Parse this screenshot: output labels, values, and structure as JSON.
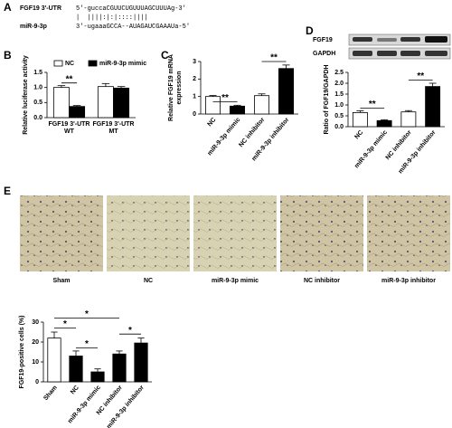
{
  "panel_labels": [
    "A",
    "B",
    "C",
    "D",
    "E"
  ],
  "sequence": {
    "target_name": "FGF19 3'-UTR",
    "target_seq": "5'-guccaCGUUCUGUUUAGCUUUAg-3'",
    "pairing": "|  ||||:|:|::::||||",
    "mirna_name": "miR-9-3p",
    "mirna_seq": "3'-ugaaaGCCA--AUAGAUCGAAAUa-5'"
  },
  "blot": {
    "labels": [
      "FGF19",
      "GAPDH"
    ]
  },
  "images": {
    "labels": [
      "Sham",
      "NC",
      "miR-9-3p mimic",
      "NC inhibitor",
      "miR-9-3p inhibitor"
    ]
  },
  "chart_data": [
    {
      "type": "grouped-bar",
      "ylabel": [
        "Relative luciferase activity"
      ],
      "categories": [
        [
          "FGF19 3'-UTR",
          "WT"
        ],
        [
          "FGF19 3'-UTR",
          "MT"
        ]
      ],
      "series": [
        {
          "name": "NC",
          "color": "#ffffff",
          "values": [
            1.0,
            1.03
          ],
          "errors": [
            0.06,
            0.1
          ]
        },
        {
          "name": "miR-9-3p mimic",
          "color": "#000000",
          "values": [
            0.37,
            0.98
          ],
          "errors": [
            0.03,
            0.05
          ]
        }
      ],
      "ylim": [
        0,
        1.5
      ],
      "yticks": [
        {
          "value": 0,
          "label": "0.0"
        },
        {
          "value": 0.5,
          "label": "0.5"
        },
        {
          "value": 1,
          "label": "1.0"
        },
        {
          "value": 1.5,
          "label": "1.5"
        }
      ],
      "annotations": [
        "**"
      ]
    },
    {
      "type": "bar",
      "ylabel": [
        "Relative FGF19 mRNA",
        "expression"
      ],
      "categories": [
        "NC",
        "miR-9-3p mimic",
        "NC inhibitor",
        "miR-9-3p inhibitor"
      ],
      "values": [
        1.0,
        0.45,
        1.05,
        2.6
      ],
      "errors": [
        0.06,
        0.05,
        0.1,
        0.2
      ],
      "colors": [
        "#ffffff",
        "#000000",
        "#ffffff",
        "#000000"
      ],
      "ylim": [
        0,
        3
      ],
      "yticks": [
        0,
        1,
        2,
        3
      ],
      "annotations": [
        "**",
        "**"
      ]
    },
    {
      "type": "bar",
      "ylabel": [
        "Ratio of FGF19/GAPDH"
      ],
      "categories": [
        "NC",
        "miR-9-3p mimic",
        "NC inhibitor",
        "miR-9-3p inhibitor"
      ],
      "values": [
        0.65,
        0.28,
        0.68,
        1.85
      ],
      "errors": [
        0.08,
        0.04,
        0.06,
        0.15
      ],
      "colors": [
        "#ffffff",
        "#000000",
        "#ffffff",
        "#000000"
      ],
      "ylim": [
        0,
        2.5
      ],
      "yticks": [
        {
          "value": 0,
          "label": "0.0"
        },
        {
          "value": 0.5,
          "label": "0.5"
        },
        {
          "value": 1,
          "label": "1.0"
        },
        {
          "value": 1.5,
          "label": "1.5"
        },
        {
          "value": 2,
          "label": "2.0"
        },
        {
          "value": 2.5,
          "label": "2.5"
        }
      ],
      "annotations": [
        "**",
        "**"
      ]
    },
    {
      "type": "bar",
      "ylabel": [
        "FGF19-positive cells (%)"
      ],
      "categories": [
        "Sham",
        "NC",
        "miR-9-3p mimic",
        "NC inhibitor",
        "miR-9-3p inhibitor"
      ],
      "values": [
        22,
        13,
        5,
        14,
        19.5
      ],
      "errors": [
        3,
        2.5,
        1.5,
        1.5,
        2.5
      ],
      "colors": [
        "#ffffff",
        "#000000",
        "#000000",
        "#000000",
        "#000000"
      ],
      "ylim": [
        0,
        30
      ],
      "yticks": [
        0,
        10,
        20,
        30
      ],
      "annotations": [
        "*",
        "*",
        "*",
        "*"
      ]
    }
  ]
}
